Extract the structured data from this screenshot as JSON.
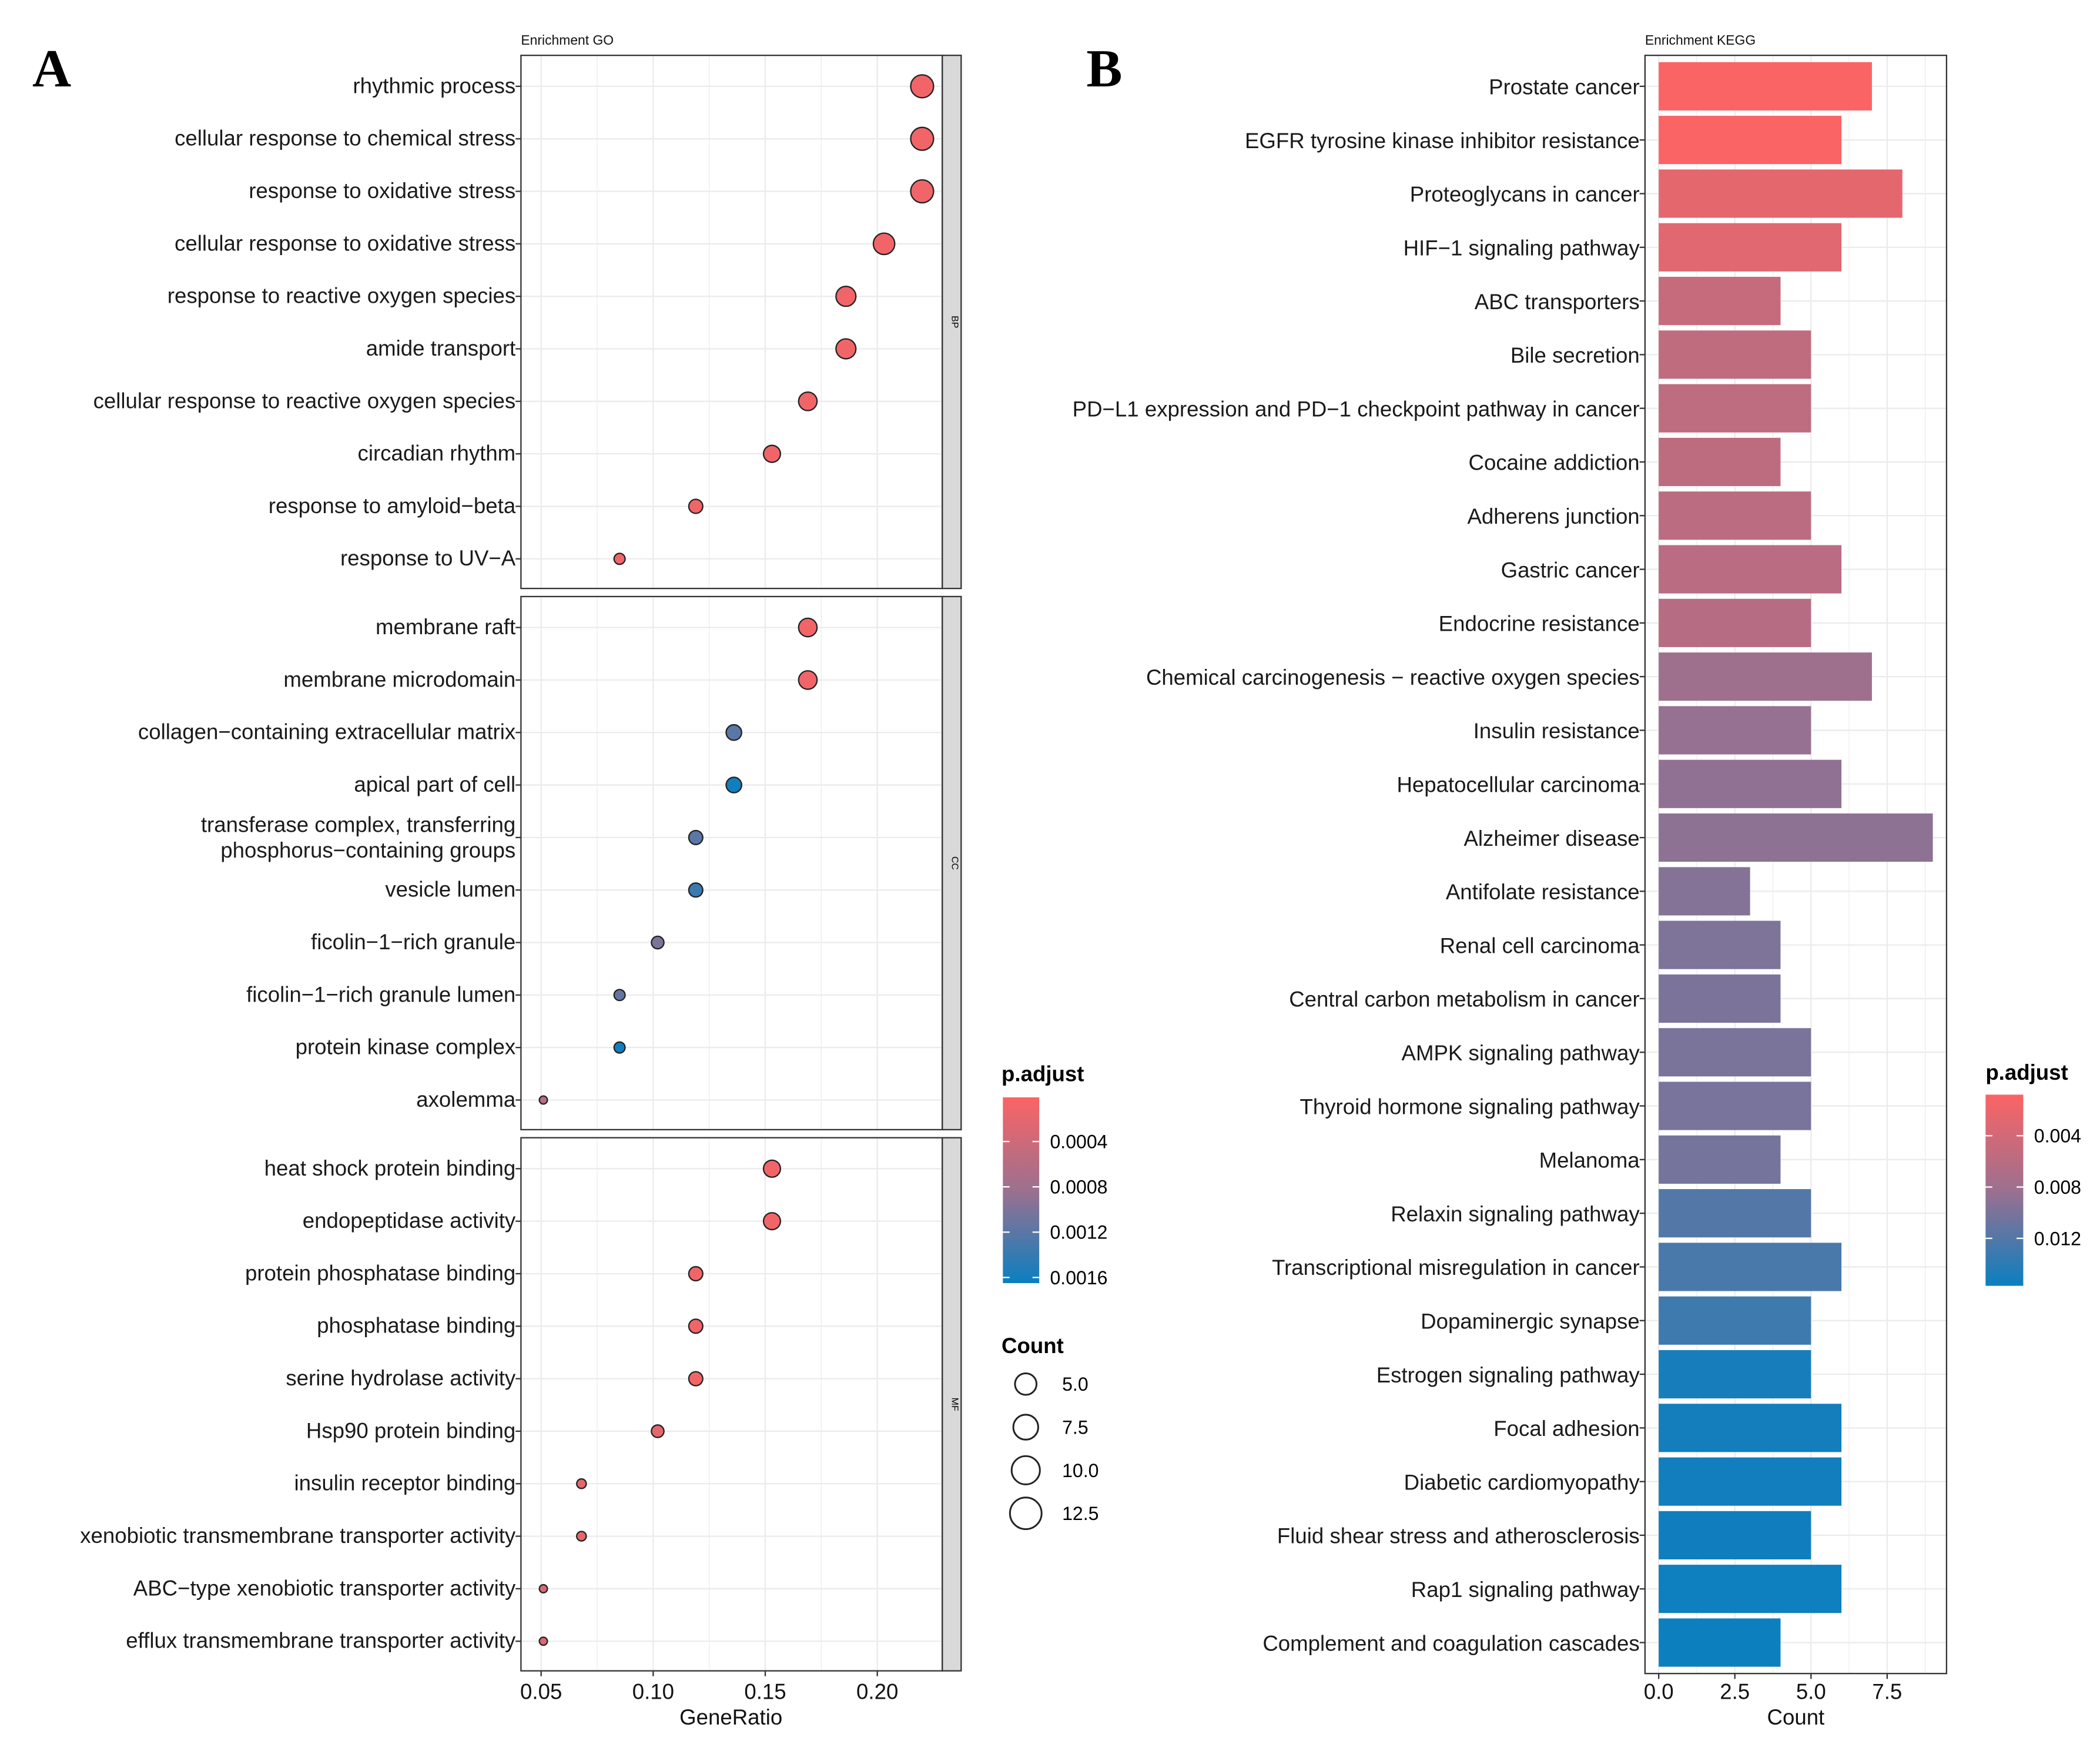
{
  "colors": {
    "low": "#FB6464",
    "high": "#0A7FC0"
  },
  "chart_data": [
    {
      "type": "scatter",
      "panel_label": "A",
      "title": "Enrichment GO",
      "xlabel": "GeneRatio",
      "xticks": [
        0.05,
        0.1,
        0.15,
        0.2
      ],
      "xtick_labels": [
        "0.05",
        "0.10",
        "0.15",
        "0.20"
      ],
      "xlim": [
        0.041,
        0.229
      ],
      "facets": [
        {
          "name": "BP",
          "terms": [
            {
              "label": "rhythmic process",
              "count": 13,
              "gene_ratio": 0.22,
              "p_adjust": 0.0001
            },
            {
              "label": "cellular response to chemical stress",
              "count": 13,
              "gene_ratio": 0.22,
              "p_adjust": 0.0001
            },
            {
              "label": "response to oxidative stress",
              "count": 13,
              "gene_ratio": 0.22,
              "p_adjust": 0.0001
            },
            {
              "label": "cellular response to oxidative stress",
              "count": 12,
              "gene_ratio": 0.203,
              "p_adjust": 0.0001
            },
            {
              "label": "response to reactive oxygen species",
              "count": 11,
              "gene_ratio": 0.186,
              "p_adjust": 0.0001
            },
            {
              "label": "amide transport",
              "count": 11,
              "gene_ratio": 0.186,
              "p_adjust": 0.0001
            },
            {
              "label": "cellular response to reactive oxygen species",
              "count": 10,
              "gene_ratio": 0.169,
              "p_adjust": 0.0001
            },
            {
              "label": "circadian rhythm",
              "count": 9,
              "gene_ratio": 0.153,
              "p_adjust": 0.0001
            },
            {
              "label": "response to amyloid−beta",
              "count": 7,
              "gene_ratio": 0.119,
              "p_adjust": 0.0001
            },
            {
              "label": "response to UV−A",
              "count": 5,
              "gene_ratio": 0.085,
              "p_adjust": 0.0001
            }
          ]
        },
        {
          "name": "CC",
          "terms": [
            {
              "label": "membrane raft",
              "count": 10,
              "gene_ratio": 0.169,
              "p_adjust": 0.0001
            },
            {
              "label": "membrane microdomain",
              "count": 10,
              "gene_ratio": 0.169,
              "p_adjust": 0.0001
            },
            {
              "label": "collagen−containing extracellular matrix",
              "count": 8,
              "gene_ratio": 0.136,
              "p_adjust": 0.0012
            },
            {
              "label": "apical part of cell",
              "count": 8,
              "gene_ratio": 0.136,
              "p_adjust": 0.0016
            },
            {
              "label": "transferase complex, transferring\nphosphorus−containing groups",
              "count": 7,
              "gene_ratio": 0.119,
              "p_adjust": 0.0012
            },
            {
              "label": "vesicle lumen",
              "count": 7,
              "gene_ratio": 0.119,
              "p_adjust": 0.00138
            },
            {
              "label": "ficolin−1−rich granule",
              "count": 6,
              "gene_ratio": 0.102,
              "p_adjust": 0.001
            },
            {
              "label": "ficolin−1−rich granule lumen",
              "count": 5,
              "gene_ratio": 0.085,
              "p_adjust": 0.00115
            },
            {
              "label": "protein kinase complex",
              "count": 5,
              "gene_ratio": 0.085,
              "p_adjust": 0.0016
            },
            {
              "label": "axolemma",
              "count": 3,
              "gene_ratio": 0.051,
              "p_adjust": 0.0006
            }
          ]
        },
        {
          "name": "MF",
          "terms": [
            {
              "label": "heat shock protein binding",
              "count": 9,
              "gene_ratio": 0.153,
              "p_adjust": 0.0001
            },
            {
              "label": "endopeptidase activity",
              "count": 9,
              "gene_ratio": 0.153,
              "p_adjust": 0.0001
            },
            {
              "label": "protein phosphatase binding",
              "count": 7,
              "gene_ratio": 0.119,
              "p_adjust": 0.0001
            },
            {
              "label": "phosphatase binding",
              "count": 7,
              "gene_ratio": 0.119,
              "p_adjust": 0.0001
            },
            {
              "label": "serine hydrolase activity",
              "count": 7,
              "gene_ratio": 0.119,
              "p_adjust": 0.0001
            },
            {
              "label": "Hsp90 protein binding",
              "count": 6,
              "gene_ratio": 0.102,
              "p_adjust": 0.0002
            },
            {
              "label": "insulin receptor binding",
              "count": 4,
              "gene_ratio": 0.068,
              "p_adjust": 0.0002
            },
            {
              "label": "xenobiotic transmembrane transporter activity",
              "count": 4,
              "gene_ratio": 0.068,
              "p_adjust": 0.0002
            },
            {
              "label": "ABC−type xenobiotic transporter activity",
              "count": 3,
              "gene_ratio": 0.051,
              "p_adjust": 0.0003
            },
            {
              "label": "efflux transmembrane transporter activity",
              "count": 3,
              "gene_ratio": 0.051,
              "p_adjust": 0.0003
            }
          ]
        }
      ],
      "color_legend": {
        "title": "p.adjust",
        "range": [
          1e-05,
          0.00165
        ],
        "ticks": [
          0.0004,
          0.0008,
          0.0012,
          0.0016
        ],
        "tick_labels": [
          "0.0004",
          "0.0008",
          "0.0012",
          "0.0016"
        ]
      },
      "size_legend": {
        "title": "Count",
        "values": [
          5.0,
          7.5,
          10.0,
          12.5
        ],
        "labels": [
          "5.0",
          "7.5",
          "10.0",
          "12.5"
        ]
      }
    },
    {
      "type": "bar",
      "orientation": "horizontal",
      "panel_label": "B",
      "title": "Enrichment KEGG",
      "xlabel": "Count",
      "xticks": [
        0,
        2.5,
        5,
        7.5
      ],
      "xtick_labels": [
        "0.0",
        "2.5",
        "5.0",
        "7.5"
      ],
      "xlim": [
        -0.45,
        9.45
      ],
      "categories": [
        "Prostate cancer",
        "EGFR tyrosine kinase inhibitor resistance",
        "Proteoglycans in cancer",
        "HIF−1 signaling pathway",
        "ABC transporters",
        "Bile secretion",
        "PD−L1 expression and PD−1 checkpoint pathway in cancer",
        "Cocaine addiction",
        "Adherens junction",
        "Gastric cancer",
        "Endocrine resistance",
        "Chemical carcinogenesis − reactive oxygen species",
        "Insulin resistance",
        "Hepatocellular carcinoma",
        "Alzheimer disease",
        "Antifolate resistance",
        "Renal cell carcinoma",
        "Central carbon metabolism in cancer",
        "AMPK signaling pathway",
        "Thyroid hormone signaling pathway",
        "Melanoma",
        "Relaxin signaling pathway",
        "Transcriptional misregulation in cancer",
        "Dopaminergic synapse",
        "Estrogen signaling pathway",
        "Focal adhesion",
        "Diabetic cardiomyopathy",
        "Fluid shear stress and atherosclerosis",
        "Rap1 signaling pathway",
        "Complement and coagulation cascades"
      ],
      "values": [
        7,
        6,
        8,
        6,
        4,
        5,
        5,
        4,
        5,
        6,
        5,
        7,
        5,
        6,
        9,
        3,
        4,
        4,
        5,
        5,
        4,
        5,
        6,
        5,
        5,
        6,
        6,
        5,
        6,
        4
      ],
      "p_adjust": [
        0.0008,
        0.0009,
        0.0025,
        0.0028,
        0.005,
        0.0055,
        0.0056,
        0.0057,
        0.0058,
        0.006,
        0.0062,
        0.008,
        0.0085,
        0.0088,
        0.009,
        0.0095,
        0.0098,
        0.0099,
        0.01,
        0.0101,
        0.0103,
        0.012,
        0.0125,
        0.013,
        0.015,
        0.0152,
        0.0153,
        0.0154,
        0.0155,
        0.0156
      ],
      "color_legend": {
        "title": "p.adjust",
        "range": [
          0.0008,
          0.0157
        ],
        "ticks": [
          0.004,
          0.008,
          0.012
        ],
        "tick_labels": [
          "0.004",
          "0.008",
          "0.012"
        ]
      }
    }
  ]
}
